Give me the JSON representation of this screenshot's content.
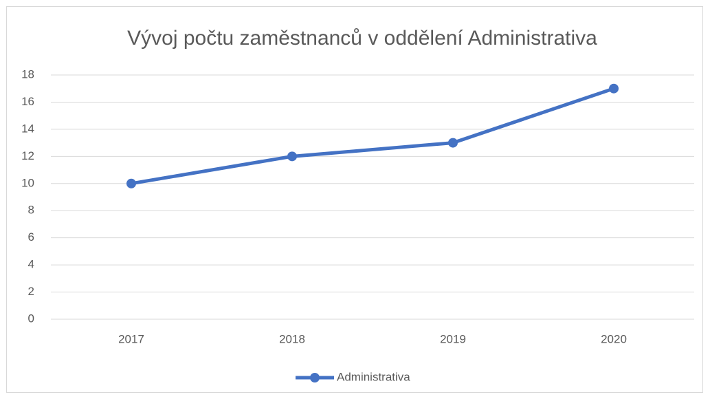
{
  "chart_data": {
    "type": "line",
    "title": "Vývoj počtu zaměstnanců v oddělení Administrativa",
    "categories": [
      "2017",
      "2018",
      "2019",
      "2020"
    ],
    "series": [
      {
        "name": "Administrativa",
        "color": "#4472c4",
        "values": [
          10,
          12,
          13,
          17
        ]
      }
    ],
    "ylim": [
      0,
      18
    ],
    "yticks": [
      0,
      2,
      4,
      6,
      8,
      10,
      12,
      14,
      16,
      18
    ],
    "grid": true,
    "legend": "bottom"
  }
}
